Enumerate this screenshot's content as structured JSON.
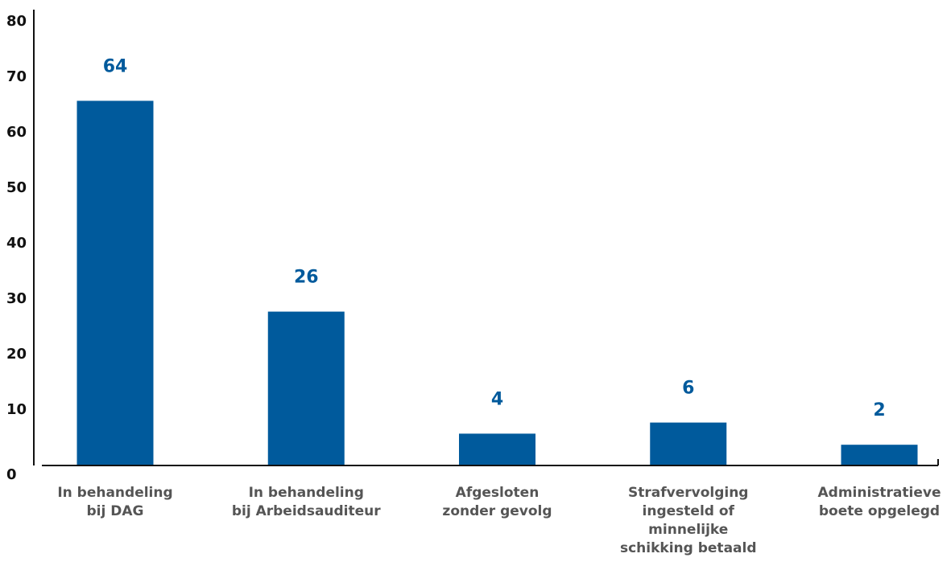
{
  "chart_data": {
    "type": "bar",
    "categories": [
      [
        "In behandeling",
        "bij DAG"
      ],
      [
        "In behandeling",
        "bij Arbeidsauditeur"
      ],
      [
        "Afgesloten",
        "zonder gevolg"
      ],
      [
        "Strafvervolging",
        "ingesteld of",
        "minnelijke",
        "schikking betaald"
      ],
      [
        "Administratieve",
        "boete opgelegd"
      ]
    ],
    "values": [
      64,
      26,
      4,
      6,
      2
    ],
    "value_labels": [
      "64",
      "26",
      "4",
      "6",
      "2"
    ],
    "ylim": [
      0,
      80
    ],
    "yticks": [
      0,
      10,
      20,
      30,
      40,
      50,
      60,
      70,
      80
    ],
    "grid": false,
    "legend": "none",
    "bar_color": "#005a9c",
    "label_color": "#005a9c",
    "axis_color": "#111111",
    "tick_label_color": "#555555"
  }
}
